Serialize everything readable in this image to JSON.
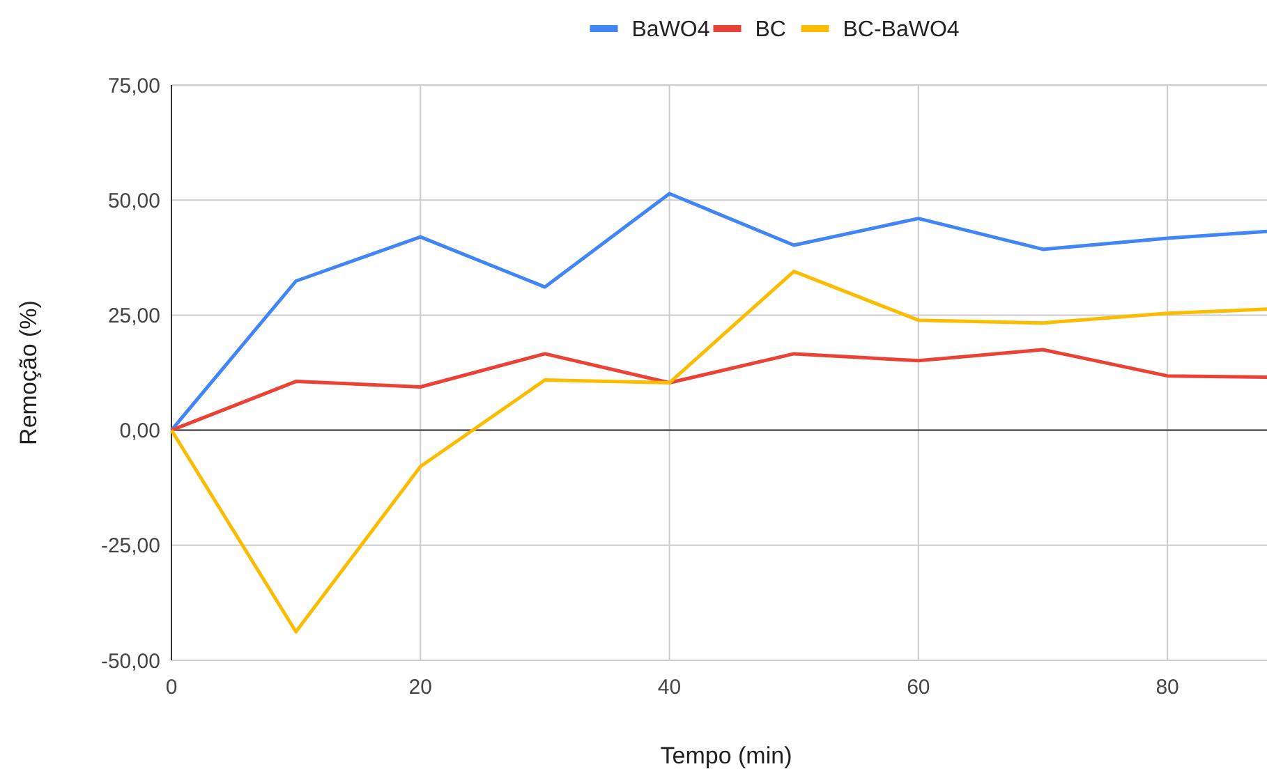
{
  "chart_data": {
    "type": "line",
    "xlabel": "Tempo (min)",
    "ylabel": "Remoção (%)",
    "x": [
      0,
      10,
      20,
      30,
      40,
      50,
      60,
      70,
      80,
      88
    ],
    "xlim": [
      0,
      88
    ],
    "xticks": [
      0,
      20,
      40,
      60,
      80
    ],
    "ylim": [
      -50,
      75
    ],
    "yticks": [
      {
        "value": -50,
        "label": "-50,00"
      },
      {
        "value": -25,
        "label": "-25,00"
      },
      {
        "value": 0,
        "label": "0,00"
      },
      {
        "value": 25,
        "label": "25,00"
      },
      {
        "value": 50,
        "label": "50,00"
      },
      {
        "value": 75,
        "label": "75,00"
      }
    ],
    "grid": true,
    "legend": "top",
    "marker": "none",
    "line_style": "solid",
    "series": [
      {
        "name": "BaWO4",
        "color": "#4285f4",
        "values": [
          0,
          32.4,
          42,
          31.1,
          51.4,
          40.2,
          46,
          39.3,
          41.7,
          43.2
        ]
      },
      {
        "name": "BC",
        "color": "#ea4335",
        "values": [
          0,
          10.6,
          9.4,
          16.6,
          10.3,
          16.6,
          15.1,
          17.5,
          11.8,
          11.5
        ]
      },
      {
        "name": "BC-BaWO4",
        "color": "#fbbc04",
        "values": [
          0,
          -43.8,
          -7.9,
          10.9,
          10.3,
          34.5,
          23.9,
          23.3,
          25.4,
          26.3
        ]
      }
    ]
  }
}
